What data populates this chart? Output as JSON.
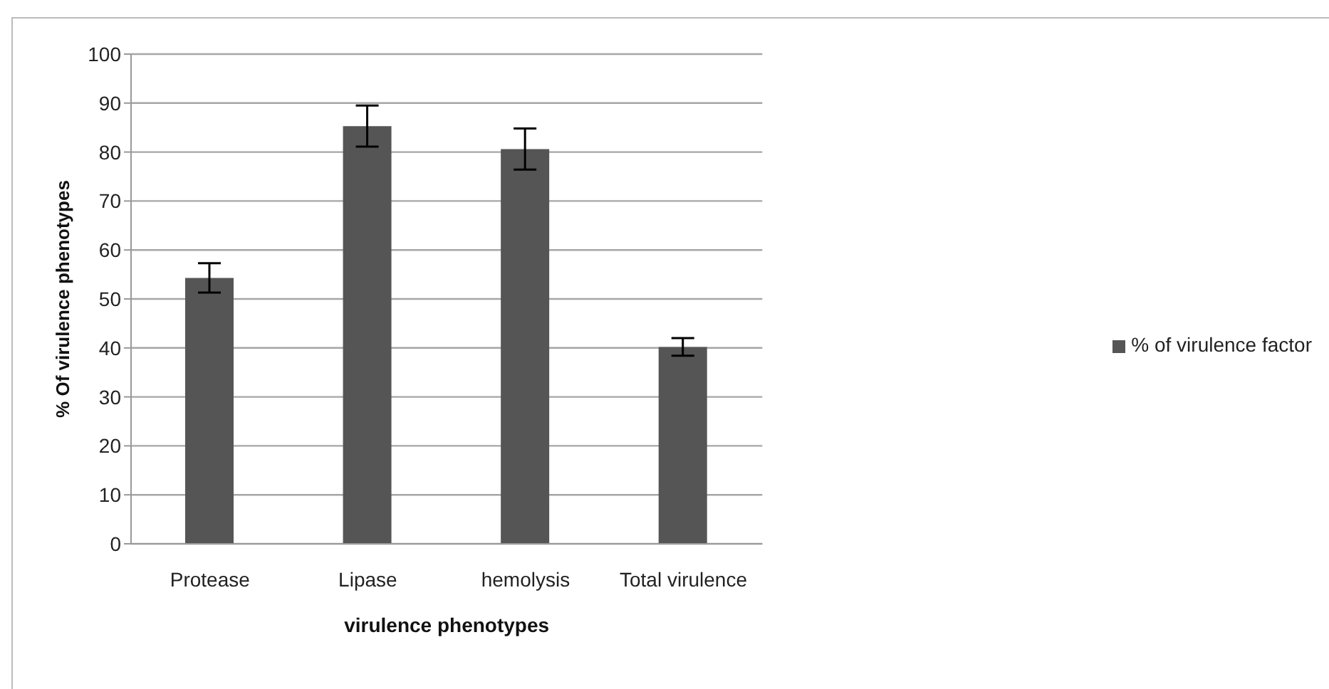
{
  "chart_data": {
    "type": "bar",
    "xlabel": "virulence phenotypes",
    "ylabel": "% Of virulence phenotypes",
    "categories": [
      "Protease",
      "Lipase",
      "hemolysis",
      "Total virulence"
    ],
    "series": [
      {
        "name": "% of virulence factor",
        "color": "#555555",
        "values": [
          54.3,
          85.3,
          80.6,
          40.2
        ],
        "errors": [
          3,
          4.2,
          4.2,
          1.8
        ]
      }
    ],
    "ylim": [
      0,
      100
    ],
    "yticks": [
      0,
      10,
      20,
      30,
      40,
      50,
      60,
      70,
      80,
      90,
      100
    ],
    "grid": "y",
    "legend": "right"
  }
}
